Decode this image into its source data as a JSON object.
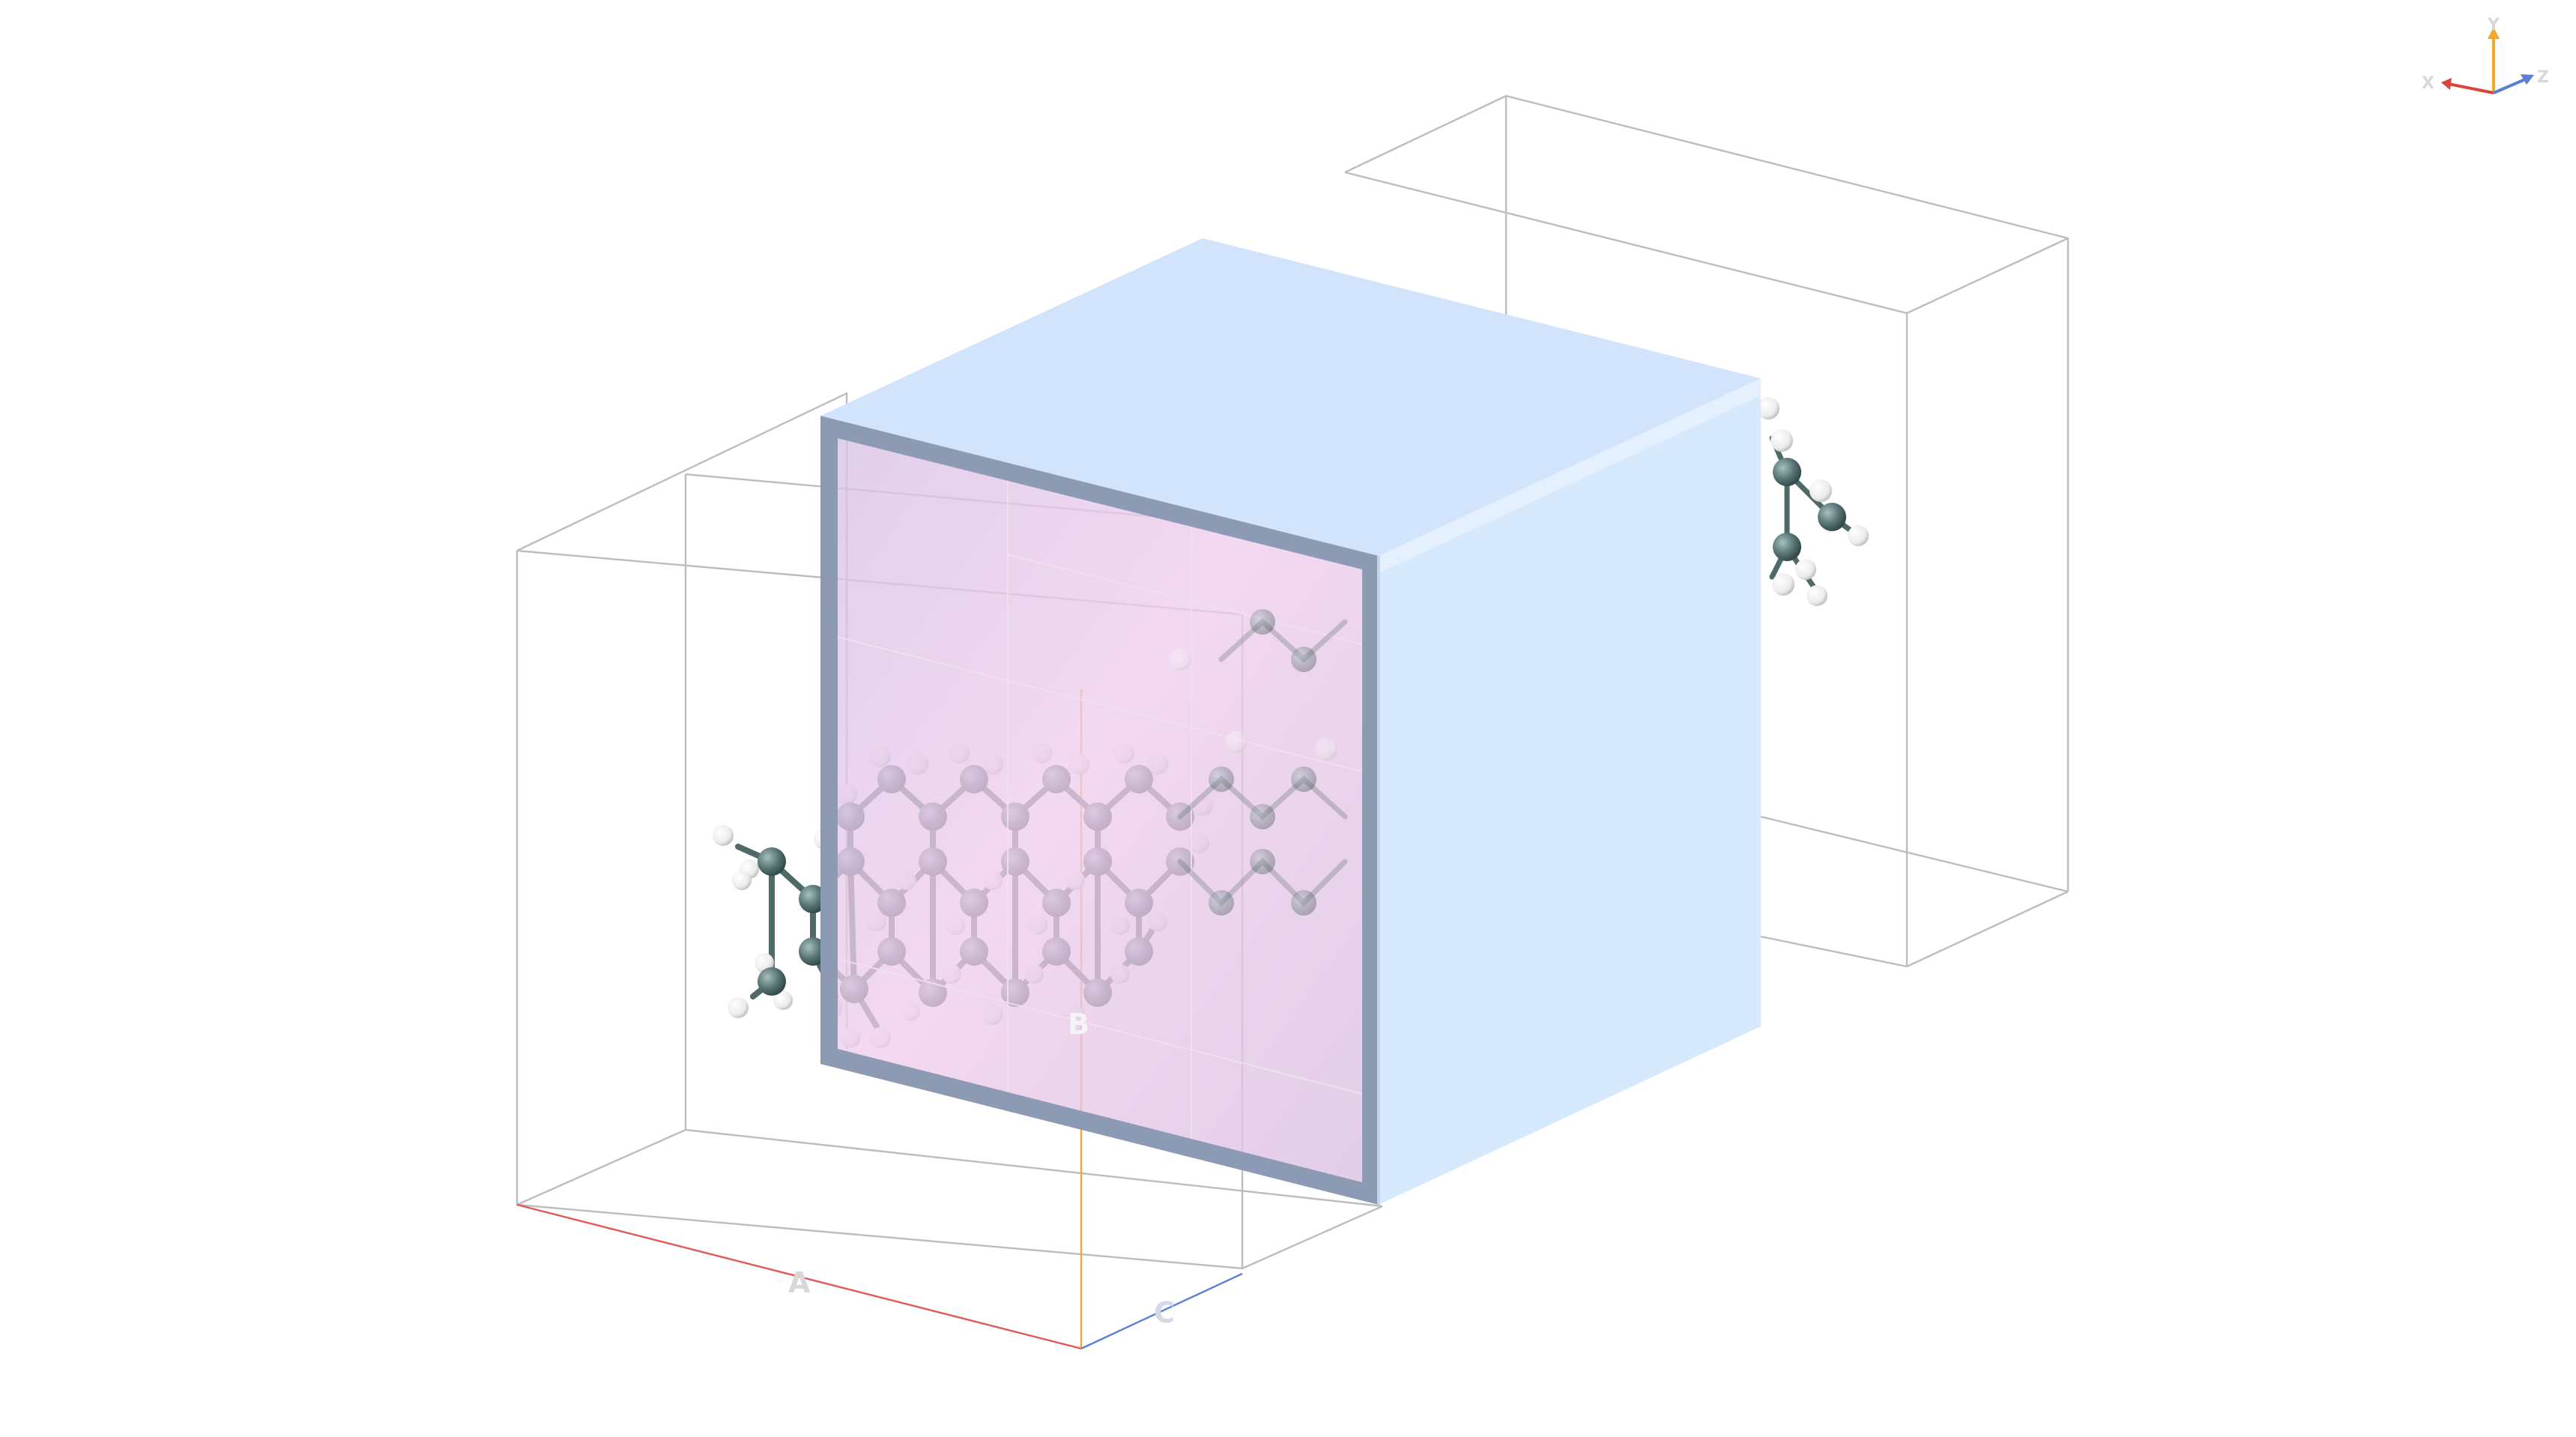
{
  "scene": {
    "lattice_labels": {
      "a": "A",
      "b": "B",
      "c": "C"
    },
    "axis_gizmo": {
      "x": "X",
      "y": "Y",
      "z": "Z"
    },
    "colors": {
      "axis_a": "#e05a5a",
      "axis_b": "#f0a830",
      "axis_c": "#5b7fd6",
      "wireframe": "#bdbdbd",
      "slab_top": "#d2e4fb",
      "slab_side": "#d6e9fd",
      "slab_front_tint": "#e6c6e4",
      "slab_frame": "#8d9ab3",
      "carbon": "#5a7676",
      "hydrogen": "#f4f4f4"
    }
  }
}
